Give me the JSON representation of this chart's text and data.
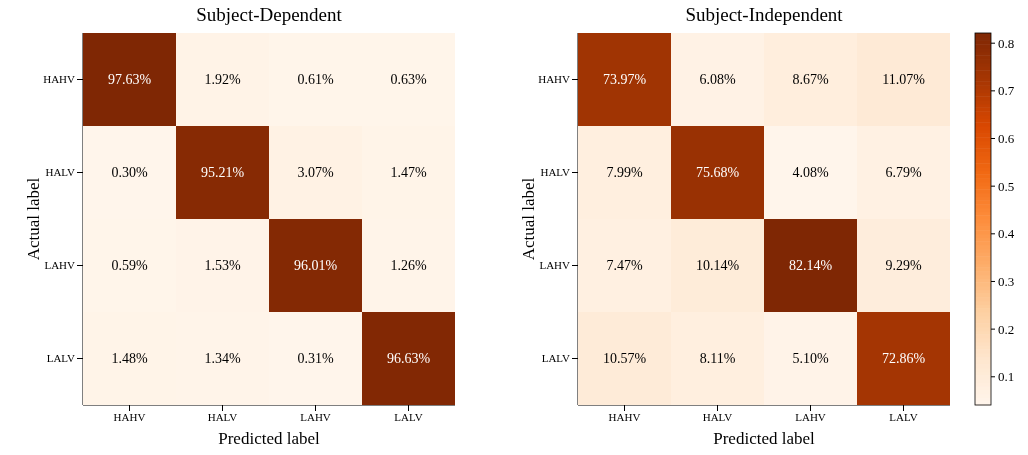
{
  "chart_data": [
    {
      "type": "heatmap",
      "title": "Subject-Dependent",
      "xlabel": "Predicted label",
      "ylabel": "Actual label",
      "categories": [
        "HAHV",
        "HALV",
        "LAHV",
        "LALV"
      ],
      "y_categories": [
        "HAHV",
        "HALV",
        "LAHV",
        "LALV"
      ],
      "cells": [
        [
          0.9763,
          0.0192,
          0.0061,
          0.0063
        ],
        [
          0.003,
          0.9521,
          0.0307,
          0.0147
        ],
        [
          0.0059,
          0.0153,
          0.9601,
          0.0126
        ],
        [
          0.0148,
          0.0134,
          0.0031,
          0.9663
        ]
      ],
      "cell_labels": [
        [
          "97.63%",
          "1.92%",
          "0.61%",
          "0.63%"
        ],
        [
          "0.30%",
          "95.21%",
          "3.07%",
          "1.47%"
        ],
        [
          "0.59%",
          "1.53%",
          "96.01%",
          "1.26%"
        ],
        [
          "1.48%",
          "1.34%",
          "0.31%",
          "96.63%"
        ]
      ]
    },
    {
      "type": "heatmap",
      "title": "Subject-Independent",
      "xlabel": "Predicted label",
      "ylabel": "Actual label",
      "categories": [
        "HAHV",
        "HALV",
        "LAHV",
        "LALV"
      ],
      "y_categories": [
        "HAHV",
        "HALV",
        "LAHV",
        "LALV"
      ],
      "cells": [
        [
          0.7397,
          0.0608,
          0.0867,
          0.1107
        ],
        [
          0.0799,
          0.7568,
          0.0408,
          0.0679
        ],
        [
          0.0747,
          0.1014,
          0.8214,
          0.0929
        ],
        [
          0.1057,
          0.0811,
          0.051,
          0.7286
        ]
      ],
      "cell_labels": [
        [
          "73.97%",
          "6.08%",
          "8.67%",
          "11.07%"
        ],
        [
          "7.99%",
          "75.68%",
          "4.08%",
          "6.79%"
        ],
        [
          "7.47%",
          "10.14%",
          "82.14%",
          "9.29%"
        ],
        [
          "10.57%",
          "8.11%",
          "5.10%",
          "72.86%"
        ]
      ],
      "clim": [
        0.0408,
        0.8214
      ],
      "cticks": [
        0.1,
        0.2,
        0.3,
        0.4,
        0.5,
        0.6,
        0.7,
        0.8
      ]
    }
  ]
}
